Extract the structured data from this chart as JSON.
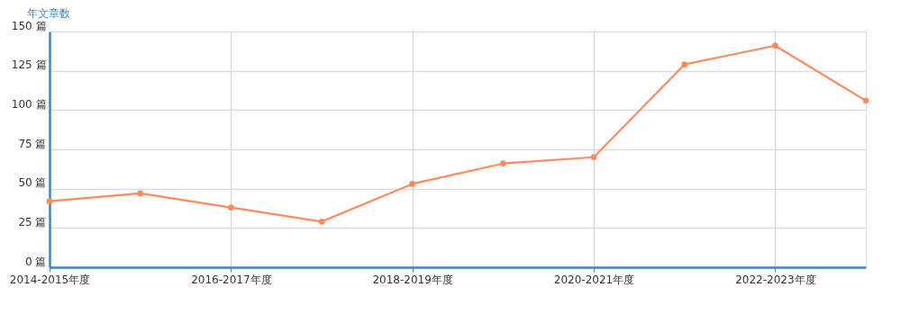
{
  "chart_data": {
    "type": "line",
    "ylabel": "年文章数",
    "categories": [
      "2014-2015年度",
      null,
      "2016-2017年度",
      null,
      "2018-2019年度",
      null,
      "2020-2021年度",
      null,
      "2022-2023年度",
      null
    ],
    "series": [
      {
        "color": "#ff8a5b",
        "values": [
          42,
          47,
          38,
          29,
          53,
          66,
          70,
          129,
          141,
          106
        ]
      }
    ],
    "ylim": [
      0,
      150
    ],
    "yticks": [
      {
        "value": 0,
        "label": "0 篇"
      },
      {
        "value": 25,
        "label": "25 篇"
      },
      {
        "value": 50,
        "label": "50 篇"
      },
      {
        "value": 75,
        "label": "75 篇"
      },
      {
        "value": 100,
        "label": "100 篇"
      },
      {
        "value": 125,
        "label": "125 篇"
      },
      {
        "value": 150,
        "label": "150 篇"
      }
    ],
    "grid": true,
    "marker": "circle",
    "line_style": "solid"
  }
}
